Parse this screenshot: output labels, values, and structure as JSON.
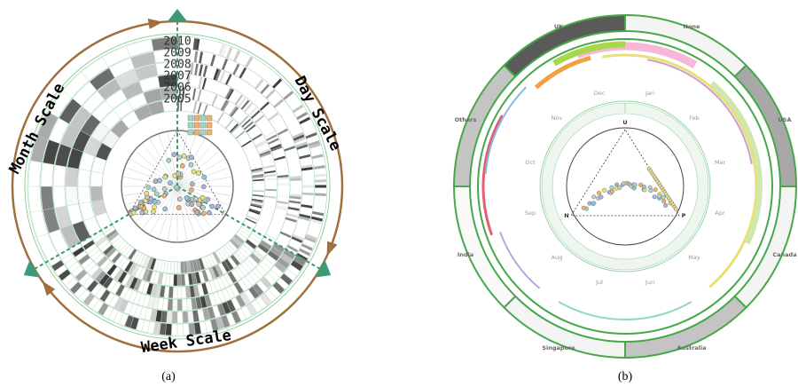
{
  "panel_a": {
    "years": [
      "2010",
      "2009",
      "2008",
      "2007",
      "2006",
      "2005"
    ],
    "day_scale": "Day Scale",
    "month_scale": "Month Scale",
    "week_scale": "Week Scale",
    "caption": "(a)"
  },
  "panel_b": {
    "countries": [
      "None",
      "USA",
      "Canada",
      "Australia",
      "Singapore",
      "India",
      "Others",
      "UK"
    ],
    "months": [
      "Jan",
      "Feb",
      "Mar",
      "Apr",
      "May",
      "Jun",
      "Jul",
      "Aug",
      "Sep",
      "Oct",
      "Nov",
      "Dec"
    ],
    "triangle": [
      "U",
      "N",
      "P"
    ],
    "caption": "(b)"
  }
}
